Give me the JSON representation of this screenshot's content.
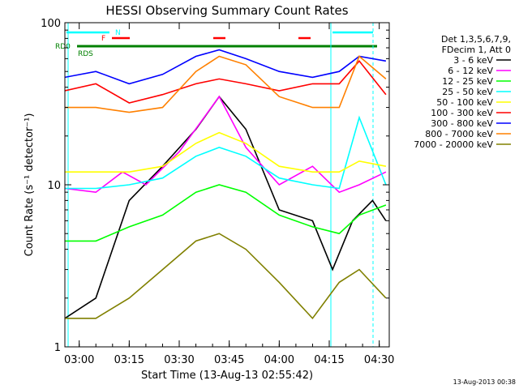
{
  "chart_data": {
    "type": "line",
    "title": "HESSI Observing Summary Count Rates",
    "xlabel": "Start Time (13-Aug-13 02:55:42)",
    "ylabel": "Count Rate (s⁻¹ detector⁻¹)",
    "yscale": "log",
    "ylim": [
      1,
      100
    ],
    "xlim": [
      "02:55:42",
      "04:33:00"
    ],
    "x_ticks": [
      "03:00",
      "03:15",
      "03:30",
      "03:45",
      "04:00",
      "04:15",
      "04:30"
    ],
    "y_ticks": [
      "1",
      "10",
      "100"
    ],
    "legend_header": [
      "Det 1,3,5,6,7,9,",
      "FDecim 1, Att 0"
    ],
    "legend_position": "right",
    "series": [
      {
        "name": "3 - 6 keV",
        "color": "#000000",
        "x": [
          "02:55:42",
          "03:05",
          "03:15",
          "03:25",
          "03:35",
          "03:42",
          "03:50",
          "04:00",
          "04:10",
          "04:16",
          "04:22",
          "04:28",
          "04:32"
        ],
        "values": [
          1.5,
          2.0,
          8,
          13,
          22,
          35,
          22,
          7,
          6,
          3,
          6,
          8,
          6
        ]
      },
      {
        "name": "6 - 12 keV",
        "color": "#ff00ff",
        "x": [
          "02:55:42",
          "03:05",
          "03:13",
          "03:20",
          "03:30",
          "03:42",
          "03:50",
          "04:00",
          "04:10",
          "04:18",
          "04:24",
          "04:32"
        ],
        "values": [
          9.5,
          9,
          12,
          10,
          16,
          35,
          17,
          10,
          13,
          9,
          10,
          12
        ]
      },
      {
        "name": "12 - 25 keV",
        "color": "#00ff00",
        "x": [
          "02:55:42",
          "03:05",
          "03:15",
          "03:25",
          "03:35",
          "03:42",
          "03:50",
          "04:00",
          "04:10",
          "04:18",
          "04:24",
          "04:32"
        ],
        "values": [
          4.5,
          4.5,
          5.5,
          6.5,
          9,
          10,
          9,
          6.5,
          5.5,
          5,
          6.5,
          7.5
        ]
      },
      {
        "name": "25 - 50 keV",
        "color": "#00ffff",
        "x": [
          "02:55:42",
          "03:05",
          "03:15",
          "03:25",
          "03:35",
          "03:42",
          "03:50",
          "04:00",
          "04:10",
          "04:18",
          "04:24",
          "04:32"
        ],
        "values": [
          9.5,
          9.5,
          10,
          11,
          15,
          17,
          15,
          11,
          10,
          9.5,
          26,
          10
        ]
      },
      {
        "name": "50 - 100 keV",
        "color": "#ffff00",
        "x": [
          "02:55:42",
          "03:05",
          "03:15",
          "03:25",
          "03:35",
          "03:42",
          "03:50",
          "04:00",
          "04:10",
          "04:18",
          "04:24",
          "04:32"
        ],
        "values": [
          12,
          12,
          12,
          13,
          18,
          21,
          18,
          13,
          12,
          12,
          14,
          13
        ]
      },
      {
        "name": "100 - 300 keV",
        "color": "#ff0000",
        "x": [
          "02:55:42",
          "03:05",
          "03:15",
          "03:25",
          "03:35",
          "03:42",
          "03:50",
          "04:00",
          "04:10",
          "04:18",
          "04:24",
          "04:32"
        ],
        "values": [
          38,
          42,
          32,
          36,
          42,
          45,
          42,
          38,
          42,
          42,
          58,
          36
        ]
      },
      {
        "name": "300 - 800 keV",
        "color": "#0000ff",
        "x": [
          "02:55:42",
          "03:05",
          "03:15",
          "03:25",
          "03:35",
          "03:42",
          "03:50",
          "04:00",
          "04:10",
          "04:18",
          "04:24",
          "04:32"
        ],
        "values": [
          46,
          50,
          42,
          48,
          62,
          68,
          60,
          50,
          46,
          50,
          62,
          58
        ]
      },
      {
        "name": "800 - 7000 keV",
        "color": "#ff8000",
        "x": [
          "02:55:42",
          "03:05",
          "03:15",
          "03:25",
          "03:35",
          "03:42",
          "03:50",
          "04:00",
          "04:10",
          "04:18",
          "04:24",
          "04:32"
        ],
        "values": [
          30,
          30,
          28,
          30,
          50,
          62,
          55,
          35,
          30,
          30,
          62,
          45
        ]
      },
      {
        "name": "7000 - 20000 keV",
        "color": "#808000",
        "x": [
          "02:55:42",
          "03:05",
          "03:15",
          "03:25",
          "03:35",
          "03:42",
          "03:50",
          "04:00",
          "04:10",
          "04:18",
          "04:24",
          "04:32"
        ],
        "values": [
          1.5,
          1.5,
          2,
          3,
          4.5,
          5,
          4,
          2.5,
          1.5,
          2.5,
          3,
          2
        ]
      }
    ],
    "flags": [
      {
        "label": "N",
        "color": "#00ffff"
      },
      {
        "label": "F",
        "color": "#ff0000"
      },
      {
        "label": "RD0",
        "color": "#008000"
      },
      {
        "label": "RDS",
        "color": "#008000"
      }
    ],
    "timestamp": "13-Aug-2013 00:38"
  }
}
